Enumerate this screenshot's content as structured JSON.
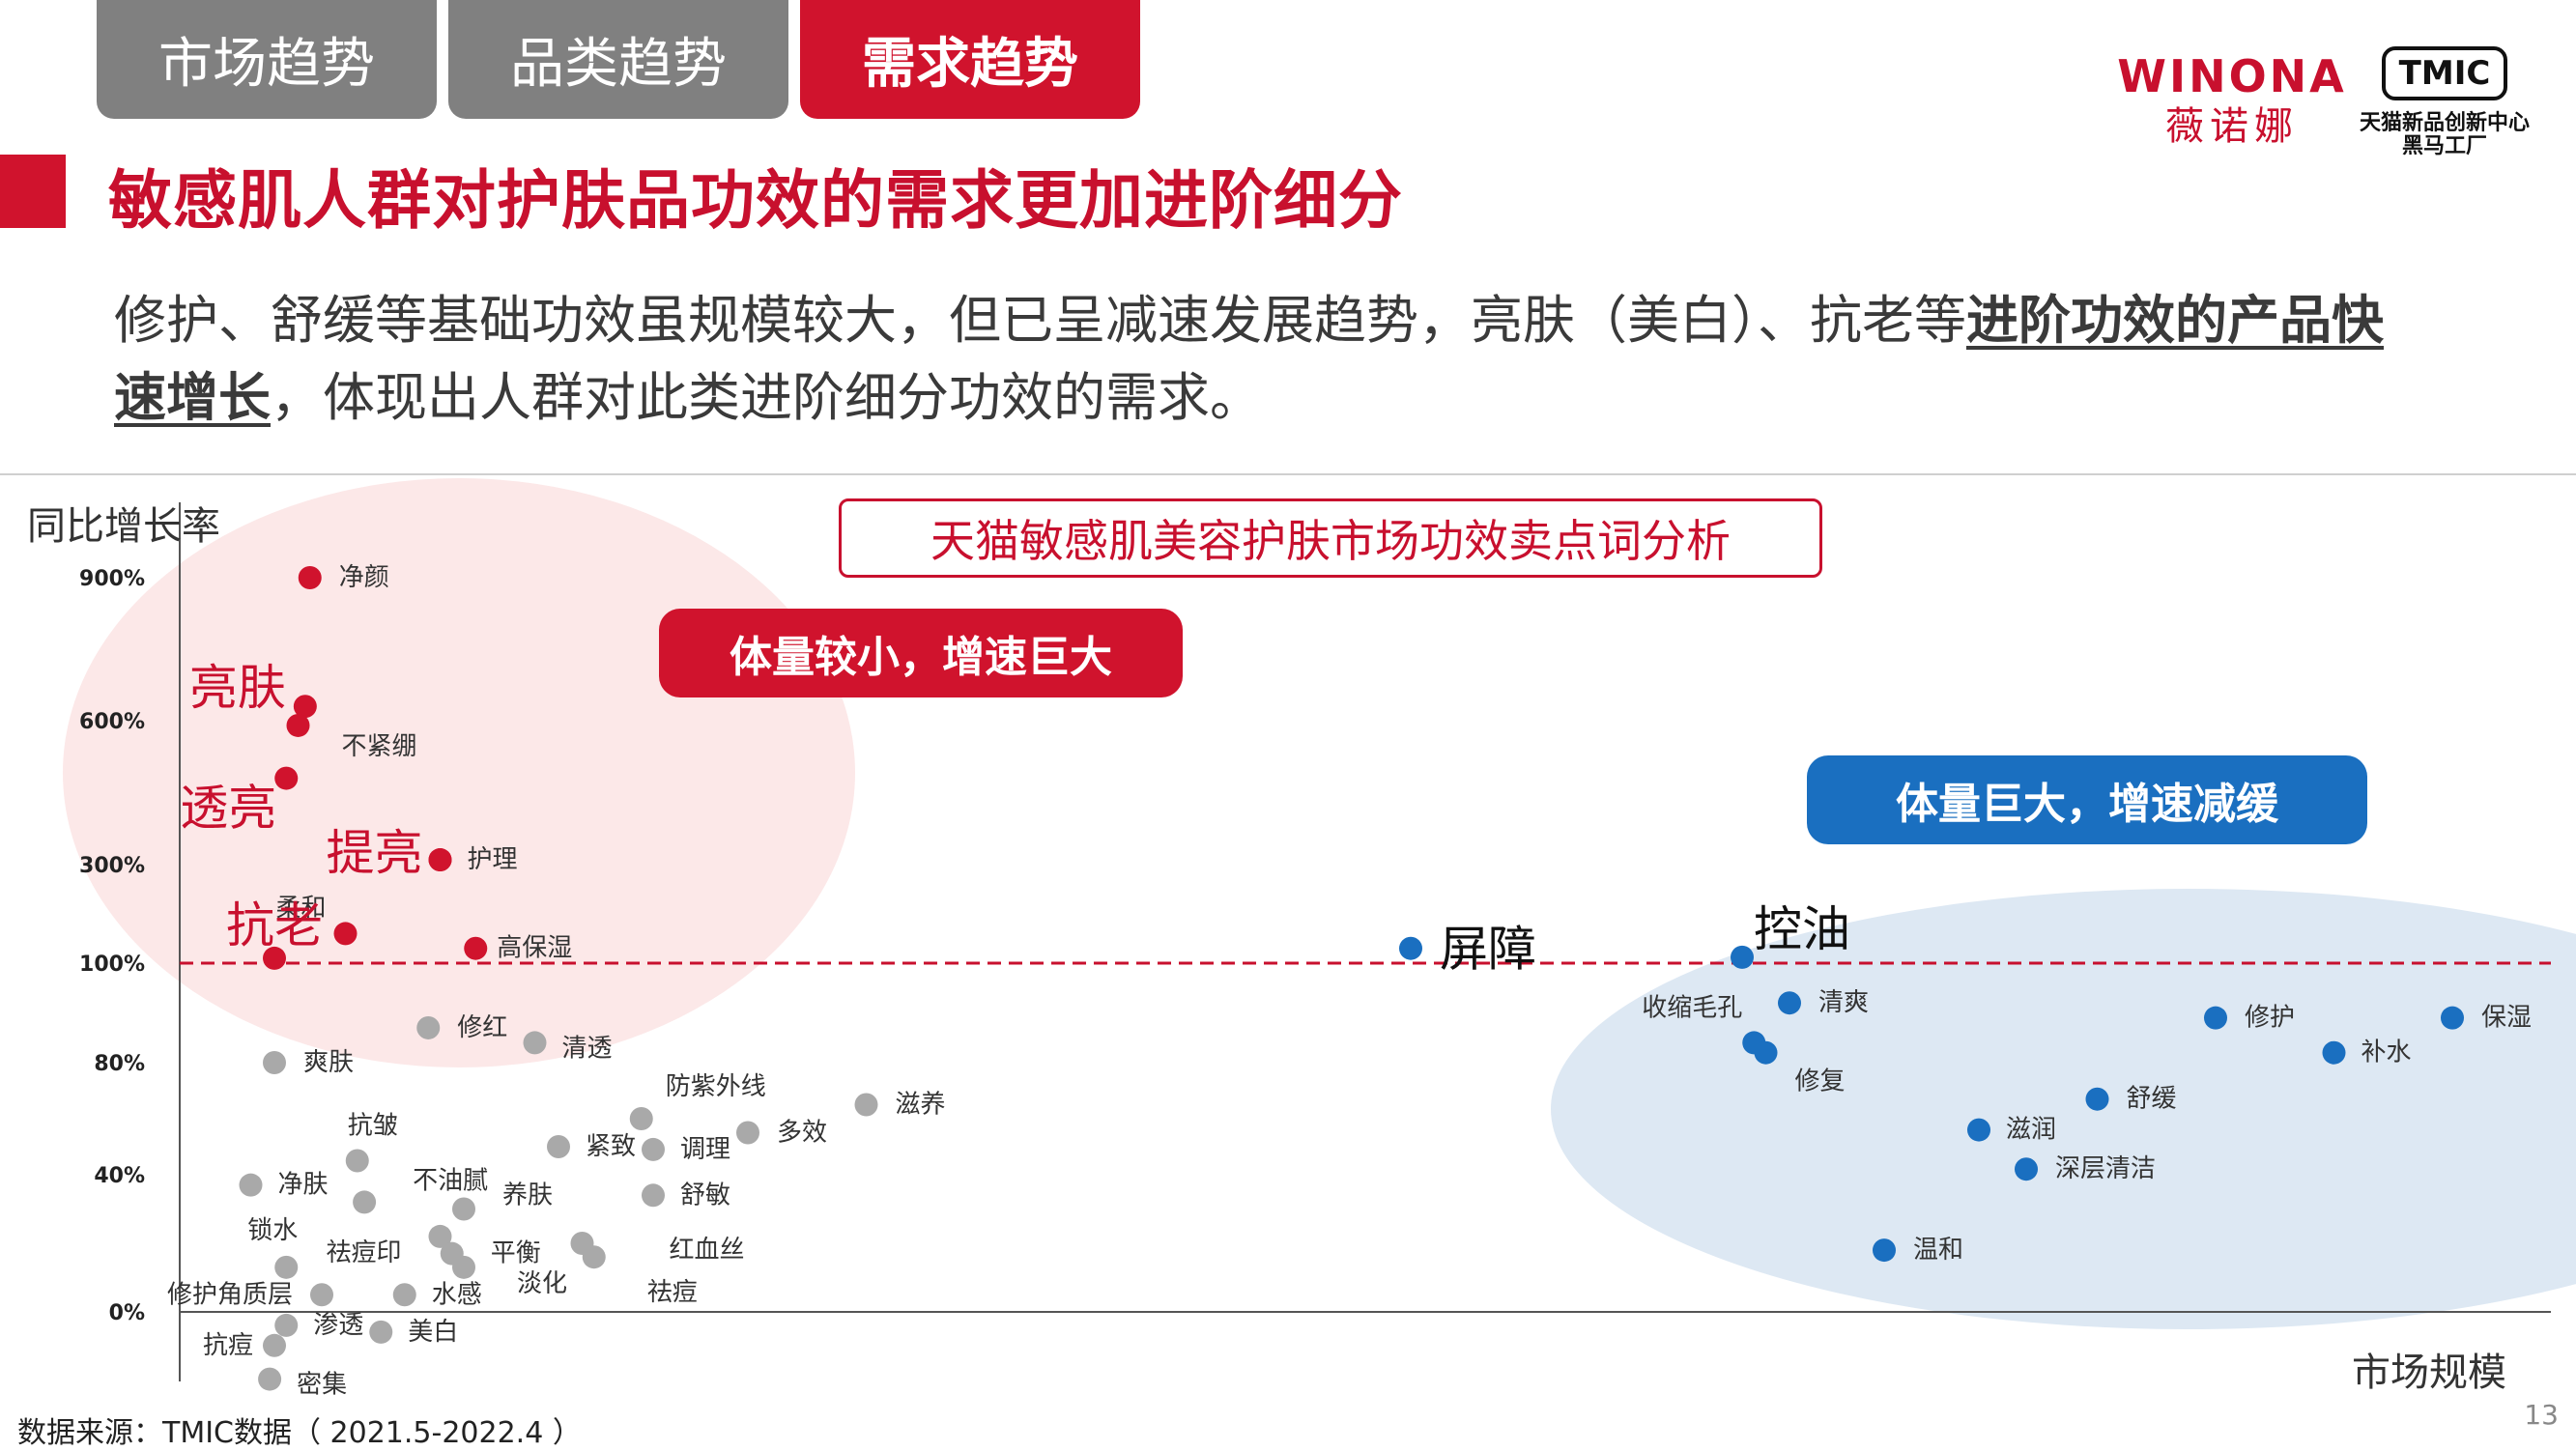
{
  "tabs": [
    {
      "label": "市场趋势",
      "active": false
    },
    {
      "label": "品类趋势",
      "active": false
    },
    {
      "label": "需求趋势",
      "active": true
    }
  ],
  "logos": {
    "winona_brand": "WINONA",
    "winona_cn": "薇诺娜",
    "tmic_mark": "TMIC",
    "tmic_line1": "天猫新品创新中心",
    "tmic_line2": "黑马工厂"
  },
  "title": "敏感肌人群对护肤品功效的需求更加进阶细分",
  "subtitle": {
    "part1": "修护、舒缓等基础功效虽规模较大，但已呈减速发展趋势，亮肤（美白）、抗老等",
    "highlight": "进阶功效的产品快速增长",
    "part2": "，体现出人群对此类进阶细分功效的需求。"
  },
  "source_note": "数据来源：TMIC数据（ 2021.5-2022.4 ）",
  "page_number": "13",
  "colors": {
    "brand_red": "#d0132d",
    "brand_blue": "#1a6fc0",
    "gray_point": "#a9a9a9",
    "red_zone": "#fce8e8",
    "blue_zone": "#dde8f3"
  },
  "chart_data": {
    "type": "scatter",
    "title": "天猫敏感肌美容护肤市场功效卖点词分析",
    "xlabel": "市场规模",
    "ylabel": "同比增长率",
    "yticks": [
      "0%",
      "40%",
      "80%",
      "100%",
      "300%",
      "600%",
      "900%"
    ],
    "y_scale": "non-linear (segmented)",
    "reference_line": {
      "y": "100%",
      "style": "dashed",
      "color": "#c8102e"
    },
    "callouts": {
      "high_growth_small": "体量较小，增速巨大",
      "large_slowing": "体量巨大，增速减缓"
    },
    "series": [
      {
        "group": "high-growth",
        "color": "#d0132d",
        "points": [
          {
            "label": "净颜",
            "x": 0.055,
            "y": 900
          },
          {
            "label": "亮肤",
            "x": 0.053,
            "y": 630,
            "emphasis": true
          },
          {
            "label": "不紧绷",
            "x": 0.05,
            "y": 590
          },
          {
            "label": "透亮",
            "x": 0.045,
            "y": 480,
            "emphasis": true
          },
          {
            "label": "提亮",
            "x": 0.11,
            "y": 310,
            "emphasis": true
          },
          {
            "label": "护理",
            "x": 0.11,
            "y": 310
          },
          {
            "label": "柔和",
            "x": 0.07,
            "y": 160
          },
          {
            "label": "高保湿",
            "x": 0.125,
            "y": 130
          },
          {
            "label": "抗老",
            "x": 0.04,
            "y": 110,
            "emphasis": true
          }
        ]
      },
      {
        "group": "large-scale",
        "color": "#1a6fc0",
        "points": [
          {
            "label": "屏障",
            "x": 0.52,
            "y": 130,
            "emphasis": true
          },
          {
            "label": "控油",
            "x": 0.66,
            "y": 112,
            "emphasis": true
          },
          {
            "label": "清爽",
            "x": 0.68,
            "y": 92
          },
          {
            "label": "收缩毛孔",
            "x": 0.665,
            "y": 84
          },
          {
            "label": "修复",
            "x": 0.67,
            "y": 82
          },
          {
            "label": "修护",
            "x": 0.86,
            "y": 89
          },
          {
            "label": "保湿",
            "x": 0.96,
            "y": 89
          },
          {
            "label": "补水",
            "x": 0.91,
            "y": 82
          },
          {
            "label": "舒缓",
            "x": 0.81,
            "y": 67
          },
          {
            "label": "滋润",
            "x": 0.76,
            "y": 56
          },
          {
            "label": "深层清洁",
            "x": 0.78,
            "y": 42
          },
          {
            "label": "温和",
            "x": 0.72,
            "y": 18
          }
        ]
      },
      {
        "group": "others",
        "color": "#a9a9a9",
        "points": [
          {
            "label": "修红",
            "x": 0.105,
            "y": 87
          },
          {
            "label": "清透",
            "x": 0.15,
            "y": 84
          },
          {
            "label": "爽肤",
            "x": 0.04,
            "y": 80
          },
          {
            "label": "滋养",
            "x": 0.29,
            "y": 65
          },
          {
            "label": "防紫外线",
            "x": 0.195,
            "y": 60
          },
          {
            "label": "多效",
            "x": 0.24,
            "y": 55
          },
          {
            "label": "紧致",
            "x": 0.16,
            "y": 50
          },
          {
            "label": "调理",
            "x": 0.2,
            "y": 49
          },
          {
            "label": "抗皱",
            "x": 0.075,
            "y": 45
          },
          {
            "label": "净肤",
            "x": 0.03,
            "y": 37
          },
          {
            "label": "舒敏",
            "x": 0.2,
            "y": 34
          },
          {
            "label": "不油腻",
            "x": 0.078,
            "y": 32
          },
          {
            "label": "养肤",
            "x": 0.12,
            "y": 30
          },
          {
            "label": "锁水",
            "x": 0.045,
            "y": 13
          },
          {
            "label": "祛痘印",
            "x": 0.11,
            "y": 22
          },
          {
            "label": "平衡",
            "x": 0.115,
            "y": 17
          },
          {
            "label": "红血丝",
            "x": 0.17,
            "y": 20
          },
          {
            "label": "淡化",
            "x": 0.12,
            "y": 13
          },
          {
            "label": "祛痘",
            "x": 0.175,
            "y": 16
          },
          {
            "label": "水感",
            "x": 0.095,
            "y": 5
          },
          {
            "label": "修护角质层",
            "x": 0.06,
            "y": 5
          },
          {
            "label": "渗透",
            "x": 0.045,
            "y": -4
          },
          {
            "label": "美白",
            "x": 0.085,
            "y": -6
          },
          {
            "label": "抗痘",
            "x": 0.04,
            "y": -10
          },
          {
            "label": "密集",
            "x": 0.038,
            "y": -20
          }
        ]
      }
    ]
  }
}
